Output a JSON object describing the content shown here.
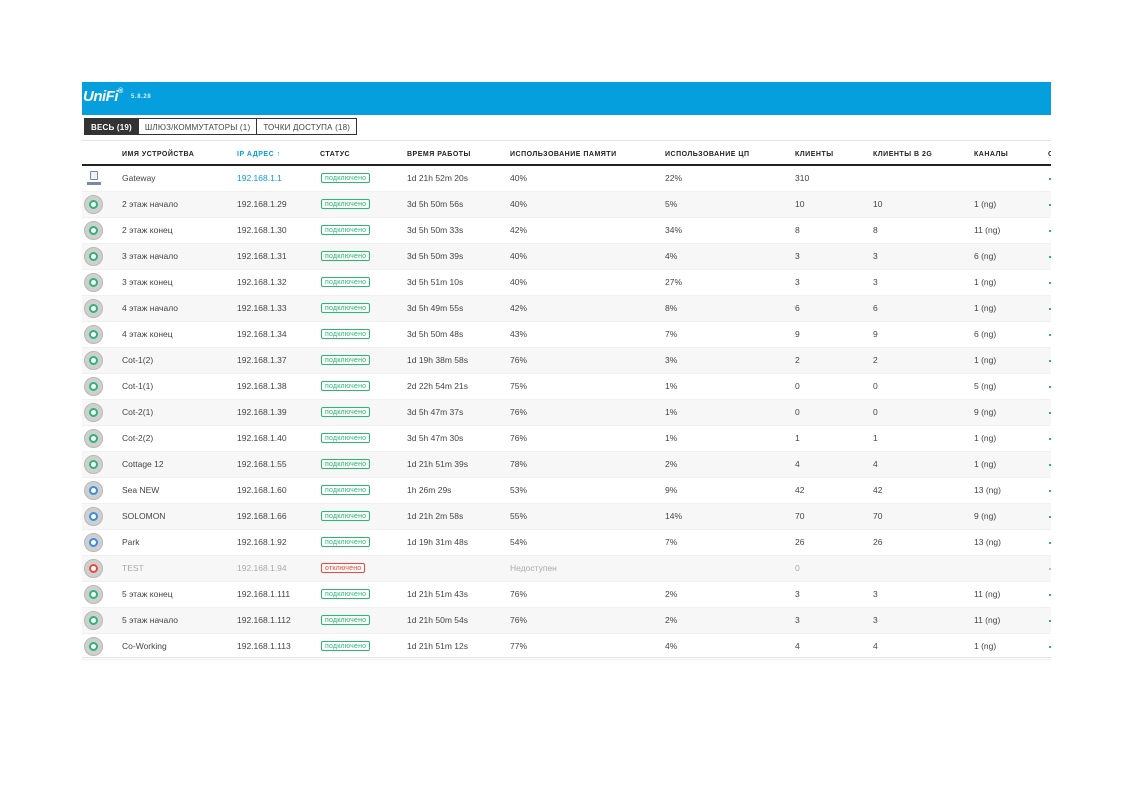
{
  "app": {
    "logo": "UniFi",
    "logo_sup": "®",
    "version": "5.8.28",
    "brand_color": "#069fdd"
  },
  "filters": [
    {
      "label": "ВЕСЬ (19)",
      "active": true
    },
    {
      "label": "ШЛЮЗ/КОММУТАТОРЫ (1)",
      "active": false
    },
    {
      "label": "ТОЧКИ ДОСТУПА (18)",
      "active": false
    }
  ],
  "columns": {
    "name": "ИМЯ УСТРОЙСТВА",
    "ip": "IP АДРЕС",
    "sort_icon": "↑",
    "status": "СТАТУС",
    "uptime": "ВРЕМЯ РАБОТЫ",
    "memory": "ИСПОЛЬЗОВАНИЕ ПАМЯТИ",
    "cpu": "ИСПОЛЬЗОВАНИЕ ЦП",
    "clients": "КЛИЕНТЫ",
    "clients2g": "КЛИЕНТЫ В 2G",
    "channels": "КАНАЛЫ",
    "next": "С"
  },
  "status_colors": {
    "connected": "#2bb673",
    "disconnected": "#e84c3d"
  },
  "devices": [
    {
      "icon": "gateway-icon",
      "name": "Gateway",
      "ip": "192.168.1.1",
      "status": "подключено",
      "state": "connected",
      "uptime": "1d 21h 52m 20s",
      "memory": "40%",
      "cpu": "22%",
      "clients": "310",
      "clients2g": "",
      "channels": ""
    },
    {
      "icon": "access-point-icon",
      "ring": "green",
      "name": "2 этаж начало",
      "ip": "192.168.1.29",
      "status": "подключено",
      "state": "connected",
      "uptime": "3d 5h 50m 56s",
      "memory": "40%",
      "cpu": "5%",
      "clients": "10",
      "clients2g": "10",
      "channels": "1 (ng)"
    },
    {
      "icon": "access-point-icon",
      "ring": "green",
      "name": "2 этаж конец",
      "ip": "192.168.1.30",
      "status": "подключено",
      "state": "connected",
      "uptime": "3d 5h 50m 33s",
      "memory": "42%",
      "cpu": "34%",
      "clients": "8",
      "clients2g": "8",
      "channels": "11 (ng)"
    },
    {
      "icon": "access-point-icon",
      "ring": "green",
      "name": "3 этаж начало",
      "ip": "192.168.1.31",
      "status": "подключено",
      "state": "connected",
      "uptime": "3d 5h 50m 39s",
      "memory": "40%",
      "cpu": "4%",
      "clients": "3",
      "clients2g": "3",
      "channels": "6 (ng)"
    },
    {
      "icon": "access-point-icon",
      "ring": "green",
      "name": "3 этаж конец",
      "ip": "192.168.1.32",
      "status": "подключено",
      "state": "connected",
      "uptime": "3d 5h 51m 10s",
      "memory": "40%",
      "cpu": "27%",
      "clients": "3",
      "clients2g": "3",
      "channels": "1 (ng)"
    },
    {
      "icon": "access-point-icon",
      "ring": "green",
      "name": "4 этаж начало",
      "ip": "192.168.1.33",
      "status": "подключено",
      "state": "connected",
      "uptime": "3d 5h 49m 55s",
      "memory": "42%",
      "cpu": "8%",
      "clients": "6",
      "clients2g": "6",
      "channels": "1 (ng)"
    },
    {
      "icon": "access-point-icon",
      "ring": "green",
      "name": "4 этаж конец",
      "ip": "192.168.1.34",
      "status": "подключено",
      "state": "connected",
      "uptime": "3d 5h 50m 48s",
      "memory": "43%",
      "cpu": "7%",
      "clients": "9",
      "clients2g": "9",
      "channels": "6 (ng)"
    },
    {
      "icon": "access-point-icon",
      "ring": "green",
      "name": "Cot-1(2)",
      "ip": "192.168.1.37",
      "status": "подключено",
      "state": "connected",
      "uptime": "1d 19h 38m 58s",
      "memory": "76%",
      "cpu": "3%",
      "clients": "2",
      "clients2g": "2",
      "channels": "1 (ng)"
    },
    {
      "icon": "access-point-icon",
      "ring": "green",
      "name": "Cot-1(1)",
      "ip": "192.168.1.38",
      "status": "подключено",
      "state": "connected",
      "uptime": "2d 22h 54m 21s",
      "memory": "75%",
      "cpu": "1%",
      "clients": "0",
      "clients2g": "0",
      "channels": "5 (ng)"
    },
    {
      "icon": "access-point-icon",
      "ring": "green",
      "name": "Cot-2(1)",
      "ip": "192.168.1.39",
      "status": "подключено",
      "state": "connected",
      "uptime": "3d 5h 47m 37s",
      "memory": "76%",
      "cpu": "1%",
      "clients": "0",
      "clients2g": "0",
      "channels": "9 (ng)"
    },
    {
      "icon": "access-point-icon",
      "ring": "green",
      "name": "Cot-2(2)",
      "ip": "192.168.1.40",
      "status": "подключено",
      "state": "connected",
      "uptime": "3d 5h 47m 30s",
      "memory": "76%",
      "cpu": "1%",
      "clients": "1",
      "clients2g": "1",
      "channels": "1 (ng)"
    },
    {
      "icon": "access-point-icon",
      "ring": "green",
      "name": "Cottage 12",
      "ip": "192.168.1.55",
      "status": "подключено",
      "state": "connected",
      "uptime": "1d 21h 51m 39s",
      "memory": "78%",
      "cpu": "2%",
      "clients": "4",
      "clients2g": "4",
      "channels": "1 (ng)"
    },
    {
      "icon": "access-point-icon",
      "ring": "blue",
      "name": "Sea NEW",
      "ip": "192.168.1.60",
      "status": "подключено",
      "state": "connected",
      "uptime": "1h 26m 29s",
      "memory": "53%",
      "cpu": "9%",
      "clients": "42",
      "clients2g": "42",
      "channels": "13 (ng)"
    },
    {
      "icon": "access-point-icon",
      "ring": "blue",
      "name": "SOLOMON",
      "ip": "192.168.1.66",
      "status": "подключено",
      "state": "connected",
      "uptime": "1d 21h 2m 58s",
      "memory": "55%",
      "cpu": "14%",
      "clients": "70",
      "clients2g": "70",
      "channels": "9 (ng)"
    },
    {
      "icon": "access-point-icon",
      "ring": "blue",
      "name": "Park",
      "ip": "192.168.1.92",
      "status": "подключено",
      "state": "connected",
      "uptime": "1d 19h 31m 48s",
      "memory": "54%",
      "cpu": "7%",
      "clients": "26",
      "clients2g": "26",
      "channels": "13 (ng)"
    },
    {
      "icon": "access-point-icon",
      "ring": "red",
      "name": "TEST",
      "ip": "192.168.1.94",
      "status": "отключено",
      "state": "disconnected",
      "uptime": "",
      "memory": "Недоступен",
      "cpu": "",
      "clients": "0",
      "clients2g": "",
      "channels": ""
    },
    {
      "icon": "access-point-icon",
      "ring": "green",
      "name": "5 этаж конец",
      "ip": "192.168.1.111",
      "status": "подключено",
      "state": "connected",
      "uptime": "1d 21h 51m 43s",
      "memory": "76%",
      "cpu": "2%",
      "clients": "3",
      "clients2g": "3",
      "channels": "11 (ng)"
    },
    {
      "icon": "access-point-icon",
      "ring": "green",
      "name": "5 этаж начало",
      "ip": "192.168.1.112",
      "status": "подключено",
      "state": "connected",
      "uptime": "1d 21h 50m 54s",
      "memory": "76%",
      "cpu": "2%",
      "clients": "3",
      "clients2g": "3",
      "channels": "11 (ng)"
    },
    {
      "icon": "access-point-icon",
      "ring": "green",
      "name": "Co-Working",
      "ip": "192.168.1.113",
      "status": "подключено",
      "state": "connected",
      "uptime": "1d 21h 51m 12s",
      "memory": "77%",
      "cpu": "4%",
      "clients": "4",
      "clients2g": "4",
      "channels": "1 (ng)"
    }
  ]
}
